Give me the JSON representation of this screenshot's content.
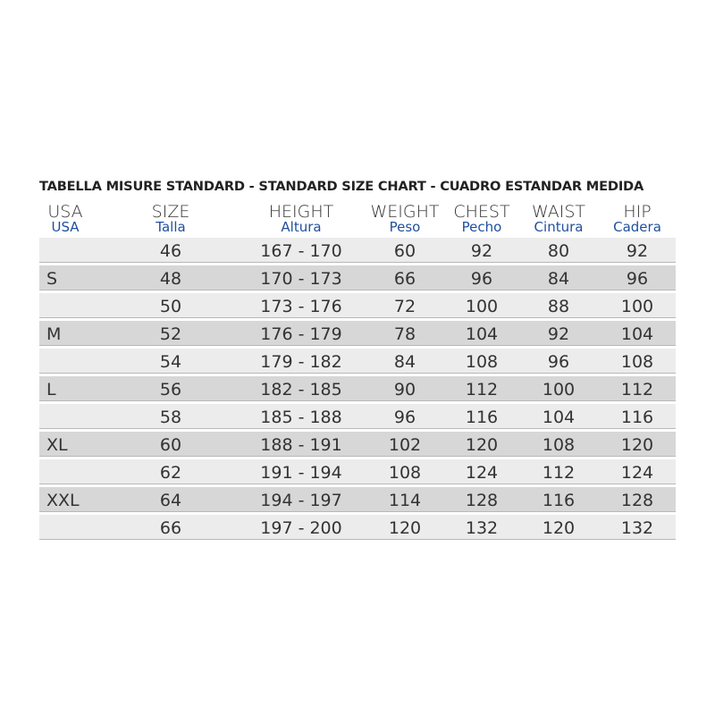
{
  "title": "TABELLA MISURE STANDARD - STANDARD SIZE CHART - CUADRO ESTANDAR MEDIDA",
  "colors": {
    "header_spanish": "#1f4f9e",
    "row_light": "#ececec",
    "row_dark": "#d7d7d7"
  },
  "headers": [
    {
      "en": "USA",
      "es": "USA"
    },
    {
      "en": "SIZE",
      "es": "Talla"
    },
    {
      "en": "HEIGHT",
      "es": "Altura"
    },
    {
      "en": "WEIGHT",
      "es": "Peso"
    },
    {
      "en": "CHEST",
      "es": "Pecho"
    },
    {
      "en": "WAIST",
      "es": "Cintura"
    },
    {
      "en": "HIP",
      "es": "Cadera"
    }
  ],
  "rows": [
    [
      "",
      "46",
      "167 - 170",
      "60",
      "92",
      "80",
      "92"
    ],
    [
      "S",
      "48",
      "170 - 173",
      "66",
      "96",
      "84",
      "96"
    ],
    [
      "",
      "50",
      "173 - 176",
      "72",
      "100",
      "88",
      "100"
    ],
    [
      "M",
      "52",
      "176 - 179",
      "78",
      "104",
      "92",
      "104"
    ],
    [
      "",
      "54",
      "179 - 182",
      "84",
      "108",
      "96",
      "108"
    ],
    [
      "L",
      "56",
      "182 - 185",
      "90",
      "112",
      "100",
      "112"
    ],
    [
      "",
      "58",
      "185 - 188",
      "96",
      "116",
      "104",
      "116"
    ],
    [
      "XL",
      "60",
      "188 - 191",
      "102",
      "120",
      "108",
      "120"
    ],
    [
      "",
      "62",
      "191 - 194",
      "108",
      "124",
      "112",
      "124"
    ],
    [
      "XXL",
      "64",
      "194 - 197",
      "114",
      "128",
      "116",
      "128"
    ],
    [
      "",
      "66",
      "197 - 200",
      "120",
      "132",
      "120",
      "132"
    ]
  ]
}
